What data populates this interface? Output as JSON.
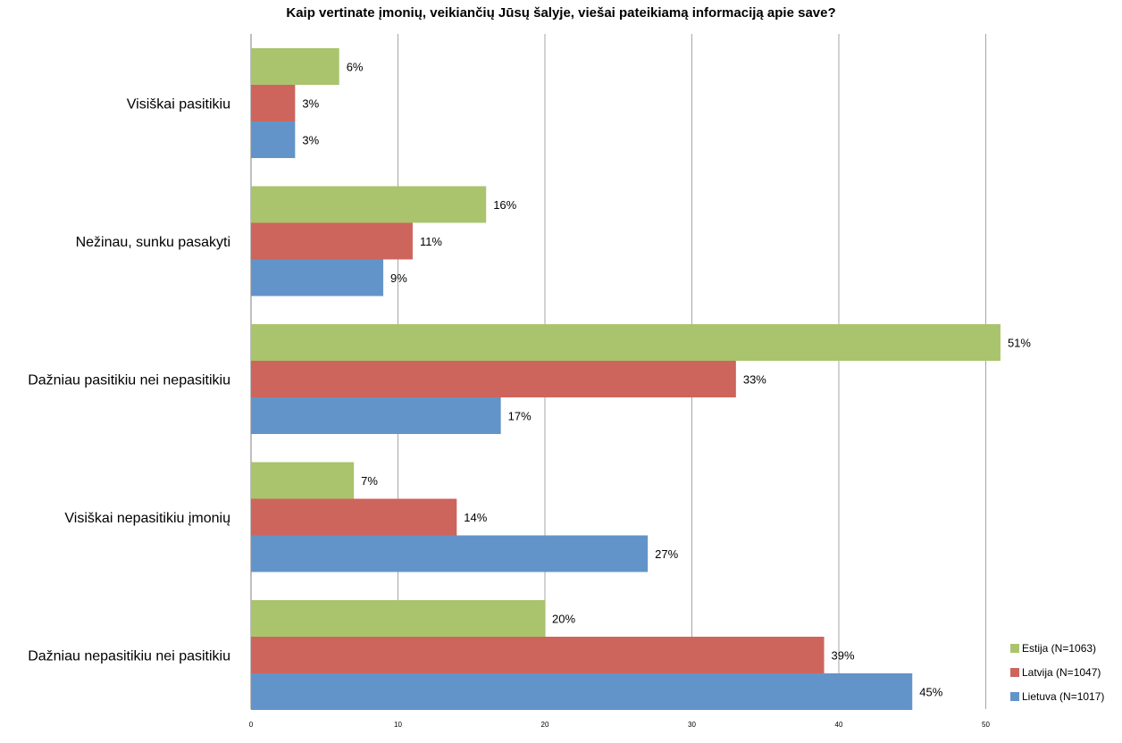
{
  "chart_data": {
    "type": "bar",
    "orientation": "horizontal",
    "title": "Kaip vertinate įmonių, veikiančių Jūsų šalyje, viešai pateikiamą informaciją apie save?",
    "categories": [
      "Visiškai pasitikiu",
      "Nežinau, sunku pasakyti",
      "Dažniau pasitikiu nei nepasitikiu",
      "Visiškai nepasitikiu įmonių",
      "Dažniau nepasitikiu nei pasitikiu"
    ],
    "series": [
      {
        "name": "Estija (N=1063)",
        "color": "#a9c46d",
        "values": [
          6,
          16,
          51,
          7,
          20
        ],
        "labels": [
          "6%",
          "16%",
          "51%",
          "7%",
          "20%"
        ]
      },
      {
        "name": "Latvija (N=1047)",
        "color": "#cd655d",
        "values": [
          3,
          11,
          33,
          14,
          39
        ],
        "labels": [
          "3%",
          "11%",
          "33%",
          "14%",
          "39%"
        ]
      },
      {
        "name": "Lietuva (N=1017)",
        "color": "#6394c9",
        "values": [
          3,
          9,
          17,
          27,
          45
        ],
        "labels": [
          "3%",
          "9%",
          "17%",
          "27%",
          "45%"
        ]
      }
    ],
    "xlim": [
      0,
      55
    ],
    "xticks": [
      0,
      10,
      20,
      30,
      40,
      50
    ],
    "grid": true,
    "legend_position": "bottom-right"
  }
}
